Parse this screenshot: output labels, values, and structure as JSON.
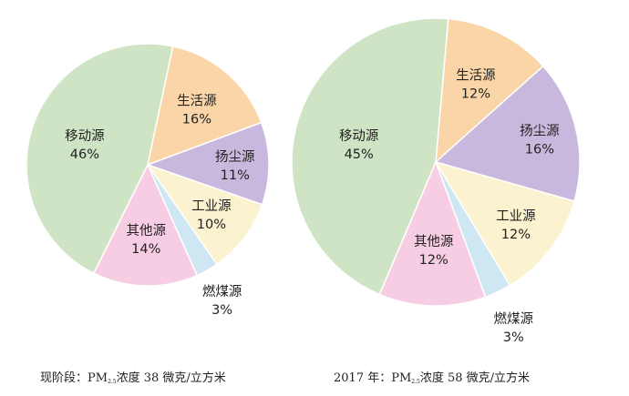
{
  "chart_data": [
    {
      "type": "pie",
      "caption": {
        "prefix": "现阶段：PM",
        "subscript": "2.5",
        "suffix": "浓度 38 微克/立方米"
      },
      "slices": [
        {
          "name": "生活源",
          "value": 16,
          "label": "16%",
          "color": "#f9d5a8"
        },
        {
          "name": "扬尘源",
          "value": 11,
          "label": "11%",
          "color": "#c9b8de"
        },
        {
          "name": "工业源",
          "value": 10,
          "label": "10%",
          "color": "#fbf2cf"
        },
        {
          "name": "燃煤源",
          "value": 3,
          "label": "3%",
          "color": "#cfe6f3"
        },
        {
          "name": "其他源",
          "value": 14,
          "label": "14%",
          "color": "#f7cde3"
        },
        {
          "name": "移动源",
          "value": 46,
          "label": "46%",
          "color": "#cfe4c5"
        }
      ]
    },
    {
      "type": "pie",
      "caption": {
        "prefix": "2017 年：PM",
        "subscript": "2.5",
        "suffix": "浓度 58 微克/立方米"
      },
      "slices": [
        {
          "name": "生活源",
          "value": 12,
          "label": "12%",
          "color": "#f9d5a8"
        },
        {
          "name": "扬尘源",
          "value": 16,
          "label": "16%",
          "color": "#c9b8de"
        },
        {
          "name": "工业源",
          "value": 12,
          "label": "12%",
          "color": "#fbf2cf"
        },
        {
          "name": "燃煤源",
          "value": 3,
          "label": "3%",
          "color": "#cfe6f3"
        },
        {
          "name": "其他源",
          "value": 12,
          "label": "12%",
          "color": "#f7cde3"
        },
        {
          "name": "移动源",
          "value": 45,
          "label": "45%",
          "color": "#cfe4c5"
        }
      ]
    }
  ]
}
